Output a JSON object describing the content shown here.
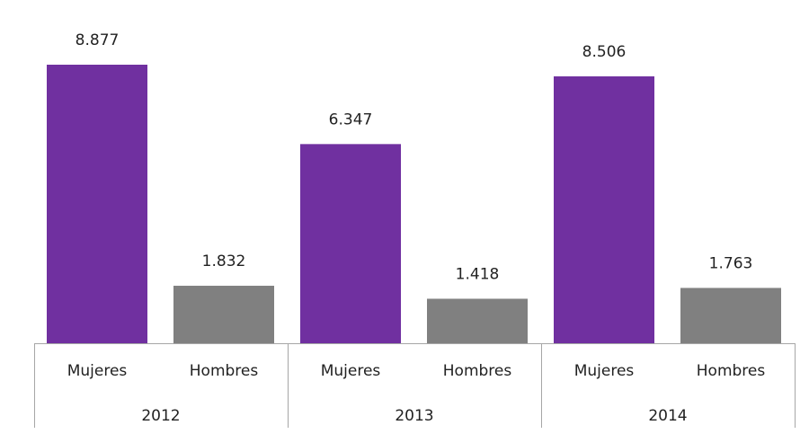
{
  "chart_data": {
    "type": "bar",
    "categories": [
      "2012",
      "2013",
      "2014"
    ],
    "series": [
      {
        "name": "Mujeres",
        "color": "#7030a0",
        "values": [
          8877,
          6347,
          8506
        ],
        "value_labels": [
          "8.877",
          "6.347",
          "8.506"
        ]
      },
      {
        "name": "Hombres",
        "color": "#808080",
        "values": [
          1832,
          1418,
          1763
        ],
        "value_labels": [
          "1.832",
          "1.418",
          "1.763"
        ]
      }
    ]
  }
}
